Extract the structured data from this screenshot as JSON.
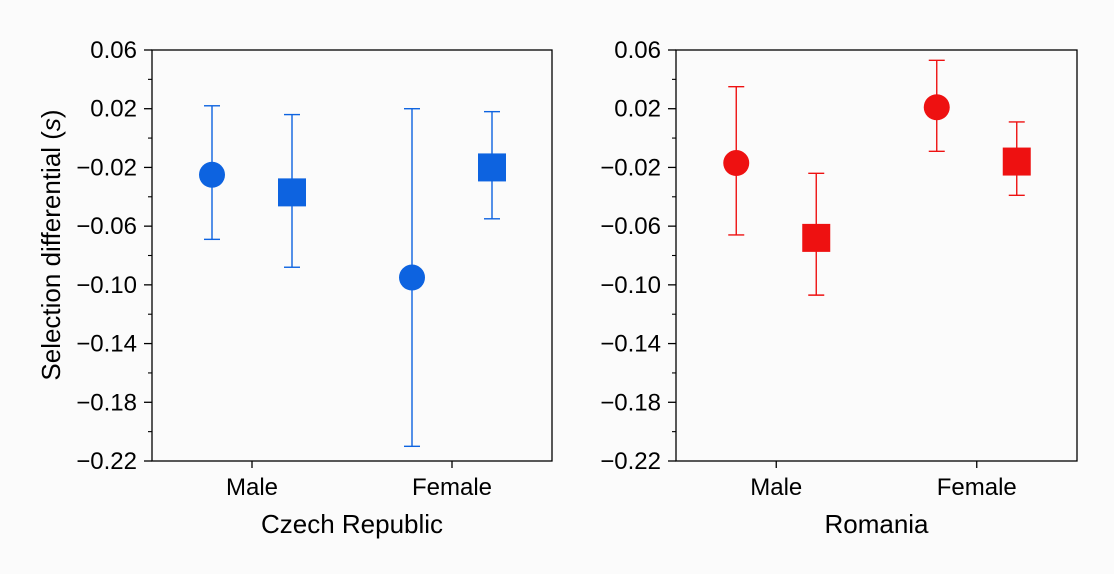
{
  "chart_data": [
    {
      "type": "scatter",
      "error_bars": true,
      "ylabel": "Selection differential (s)",
      "ylabel_main": "Selection differential (",
      "ylabel_symbol": "s",
      "ylabel_close": ")",
      "xlabel": "Czech Republic",
      "categories": [
        "Male",
        "Female"
      ],
      "ylim": [
        -0.22,
        0.06
      ],
      "yticks": [
        0.06,
        0.02,
        -0.02,
        -0.06,
        -0.1,
        -0.14,
        -0.18,
        -0.22
      ],
      "ytick_labels": [
        "0.06",
        "0.02",
        "-0.02",
        "-0.06",
        "-0.10",
        "-0.14",
        "-0.18",
        "-0.22"
      ],
      "color": "#0d63e0",
      "series": [
        {
          "marker": "circle",
          "values": [
            -0.025,
            -0.095
          ],
          "err_low": [
            -0.069,
            -0.21
          ],
          "err_high": [
            0.022,
            0.02
          ]
        },
        {
          "marker": "square",
          "values": [
            -0.037,
            -0.02
          ],
          "err_low": [
            -0.088,
            -0.055
          ],
          "err_high": [
            0.016,
            0.018
          ]
        }
      ]
    },
    {
      "type": "scatter",
      "error_bars": true,
      "xlabel": "Romania",
      "categories": [
        "Male",
        "Female"
      ],
      "ylim": [
        -0.22,
        0.06
      ],
      "yticks": [
        0.06,
        0.02,
        -0.02,
        -0.06,
        -0.1,
        -0.14,
        -0.18,
        -0.22
      ],
      "ytick_labels": [
        "0.06",
        "0.02",
        "-0.02",
        "-0.06",
        "-0.10",
        "-0.14",
        "-0.18",
        "-0.22"
      ],
      "color": "#ee1111",
      "series": [
        {
          "marker": "circle",
          "values": [
            -0.017,
            0.021
          ],
          "err_low": [
            -0.066,
            -0.009
          ],
          "err_high": [
            0.035,
            0.053
          ]
        },
        {
          "marker": "square",
          "values": [
            -0.068,
            -0.016
          ],
          "err_low": [
            -0.107,
            -0.039
          ],
          "err_high": [
            -0.024,
            0.011
          ]
        }
      ]
    }
  ]
}
